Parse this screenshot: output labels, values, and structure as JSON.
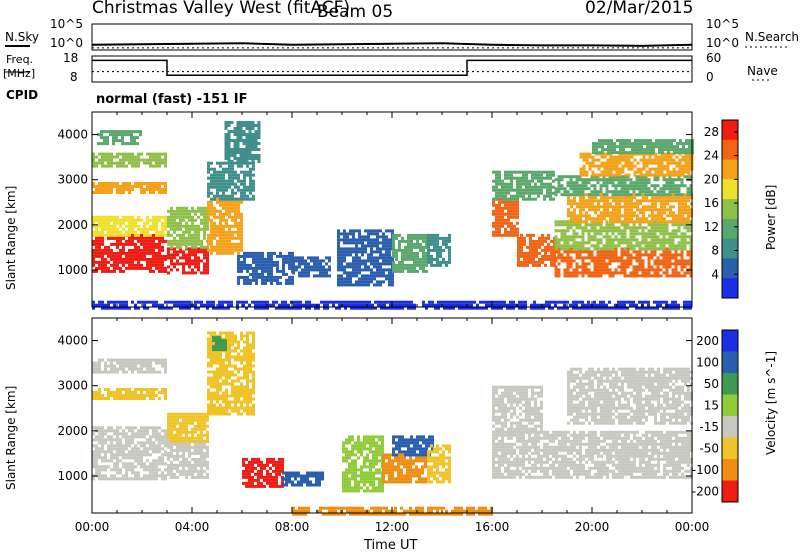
{
  "header": {
    "station": "Christmas Valley West (fitACF)",
    "beam": "Beam 05",
    "date": "02/Mar/2015"
  },
  "left_labels": {
    "nsky": "N.Sky",
    "freq": "Freq.",
    "freq_unit": "[MHz]",
    "cpid": "CPID"
  },
  "right_labels": {
    "nsearch": "N.Search",
    "nave": "Nave"
  },
  "cpid_text": "normal (fast) -151 IF",
  "noise_axis": {
    "left_ticks": [
      "10^5",
      "10^0"
    ],
    "right_ticks": [
      "10^5",
      "10^0"
    ]
  },
  "freq_axis": {
    "left_ticks": [
      "18",
      "8"
    ],
    "right_ticks": [
      "60",
      "0"
    ]
  },
  "chart_data": [
    {
      "type": "line",
      "name": "noise",
      "ylim_log10": [
        0,
        5
      ],
      "series": [
        {
          "name": "N.Sky",
          "x": [
            "00:00",
            "02:00",
            "04:00",
            "06:00",
            "08:00",
            "10:00",
            "12:00",
            "14:00",
            "16:00",
            "18:00",
            "20:00",
            "22:00",
            "24:00"
          ],
          "values_log10": [
            1.0,
            1.1,
            1.2,
            1.3,
            1.0,
            1.1,
            1.2,
            1.3,
            1.0,
            0.9,
            0.9,
            0.8,
            1.0
          ]
        },
        {
          "name": "N.Search",
          "x": [
            "00:00",
            "24:00"
          ],
          "values_log10": [
            0.4,
            0.4
          ]
        }
      ]
    },
    {
      "type": "line",
      "name": "frequency",
      "ylim": [
        8,
        18
      ],
      "series": [
        {
          "name": "Freq. [MHz]",
          "x": [
            "00:00",
            "03:00",
            "03:00",
            "15:00",
            "15:00",
            "24:00"
          ],
          "values": [
            16.3,
            16.3,
            10.6,
            10.6,
            16.3,
            16.3
          ]
        },
        {
          "name": "Nave",
          "x": [
            "00:00",
            "24:00"
          ],
          "values": [
            12.0,
            12.0
          ]
        }
      ]
    },
    {
      "type": "heatmap",
      "name": "power",
      "xlabel": "Time UT",
      "ylabel": "Slant Range [km]",
      "x_ticks": [
        "00:00",
        "04:00",
        "08:00",
        "12:00",
        "16:00",
        "20:00",
        "00:00"
      ],
      "y_ticks": [
        1000,
        2000,
        3000,
        4000
      ],
      "ylim": [
        180,
        4500
      ],
      "colorbar": {
        "label": "Power [dB]",
        "ticks": [
          4,
          8,
          12,
          16,
          20,
          24,
          28
        ],
        "range": [
          0,
          30
        ]
      },
      "bands": [
        {
          "t_start": 0.0,
          "t_end": 3.0,
          "r_low": 950,
          "r_high": 1800,
          "level": 27
        },
        {
          "t_start": 0.0,
          "t_end": 3.0,
          "r_low": 1800,
          "r_high": 2200,
          "level": 18
        },
        {
          "t_start": 0.0,
          "t_end": 3.0,
          "r_low": 2700,
          "r_high": 2950,
          "level": 21
        },
        {
          "t_start": 0.0,
          "t_end": 3.0,
          "r_low": 3300,
          "r_high": 3600,
          "level": 14
        },
        {
          "t_start": 0.2,
          "t_end": 2.0,
          "r_low": 3800,
          "r_high": 4100,
          "level": 10
        },
        {
          "t_start": 3.0,
          "t_end": 4.6,
          "r_low": 950,
          "r_high": 1500,
          "level": 27
        },
        {
          "t_start": 3.0,
          "t_end": 4.6,
          "r_low": 1500,
          "r_high": 2400,
          "level": 14
        },
        {
          "t_start": 4.6,
          "t_end": 6.0,
          "r_low": 1400,
          "r_high": 2600,
          "level": 20
        },
        {
          "t_start": 4.6,
          "t_end": 6.5,
          "r_low": 2600,
          "r_high": 3400,
          "level": 7
        },
        {
          "t_start": 5.3,
          "t_end": 6.7,
          "r_low": 3400,
          "r_high": 4300,
          "level": 9
        },
        {
          "t_start": 5.8,
          "t_end": 8.0,
          "r_low": 700,
          "r_high": 1400,
          "level": 5
        },
        {
          "t_start": 8.0,
          "t_end": 9.5,
          "r_low": 900,
          "r_high": 1300,
          "level": 5
        },
        {
          "t_start": 9.8,
          "t_end": 12.0,
          "r_low": 700,
          "r_high": 1900,
          "level": 6
        },
        {
          "t_start": 12.0,
          "t_end": 13.4,
          "r_low": 1000,
          "r_high": 1800,
          "level": 10
        },
        {
          "t_start": 13.4,
          "t_end": 14.3,
          "r_low": 1100,
          "r_high": 1800,
          "level": 8
        },
        {
          "t_start": 16.0,
          "t_end": 17.0,
          "r_low": 1800,
          "r_high": 2600,
          "level": 25
        },
        {
          "t_start": 17.0,
          "t_end": 18.5,
          "r_low": 1100,
          "r_high": 1800,
          "level": 26
        },
        {
          "t_start": 16.0,
          "t_end": 18.5,
          "r_low": 2600,
          "r_high": 3200,
          "level": 12
        },
        {
          "t_start": 18.5,
          "t_end": 24.0,
          "r_low": 900,
          "r_high": 1500,
          "level": 25
        },
        {
          "t_start": 18.5,
          "t_end": 24.0,
          "r_low": 1500,
          "r_high": 2100,
          "level": 14
        },
        {
          "t_start": 19.0,
          "t_end": 24.0,
          "r_low": 2100,
          "r_high": 2700,
          "level": 20
        },
        {
          "t_start": 18.5,
          "t_end": 24.0,
          "r_low": 2700,
          "r_high": 3100,
          "level": 12
        },
        {
          "t_start": 19.5,
          "t_end": 24.0,
          "r_low": 3100,
          "r_high": 3600,
          "level": 20
        },
        {
          "t_start": 20.0,
          "t_end": 24.0,
          "r_low": 3600,
          "r_high": 3900,
          "level": 11
        },
        {
          "t_start": 0.0,
          "t_end": 24.0,
          "r_low": 180,
          "r_high": 320,
          "level": 3
        }
      ]
    },
    {
      "type": "heatmap",
      "name": "velocity",
      "xlabel": "Time UT",
      "ylabel": "Slant Range [km]",
      "x_ticks": [
        "00:00",
        "04:00",
        "08:00",
        "12:00",
        "16:00",
        "20:00",
        "00:00"
      ],
      "y_ticks": [
        1000,
        2000,
        3000,
        4000
      ],
      "ylim": [
        180,
        4500
      ],
      "colorbar": {
        "label": "Velocity [m s^-1]",
        "ticks": [
          200,
          100,
          50,
          15,
          -15,
          -50,
          -100,
          -200
        ]
      },
      "bands": [
        {
          "t_start": 0.0,
          "t_end": 3.0,
          "r_low": 950,
          "r_high": 2100,
          "value": 0
        },
        {
          "t_start": 0.0,
          "t_end": 3.0,
          "r_low": 2700,
          "r_high": 2950,
          "value": -30
        },
        {
          "t_start": 0.0,
          "t_end": 3.0,
          "r_low": 3300,
          "r_high": 3600,
          "value": 0
        },
        {
          "t_start": 3.0,
          "t_end": 4.6,
          "r_low": 950,
          "r_high": 1800,
          "value": 0
        },
        {
          "t_start": 3.0,
          "t_end": 4.6,
          "r_low": 1800,
          "r_high": 2400,
          "value": -30
        },
        {
          "t_start": 4.6,
          "t_end": 6.5,
          "r_low": 2400,
          "r_high": 4200,
          "value": -40
        },
        {
          "t_start": 4.8,
          "t_end": 5.4,
          "r_low": 3800,
          "r_high": 4100,
          "value": 60
        },
        {
          "t_start": 6.0,
          "t_end": 7.6,
          "r_low": 750,
          "r_high": 1400,
          "value": -200
        },
        {
          "t_start": 7.6,
          "t_end": 9.2,
          "r_low": 800,
          "r_high": 1100,
          "value": 120
        },
        {
          "t_start": 10.0,
          "t_end": 11.6,
          "r_low": 700,
          "r_high": 1900,
          "value": 40
        },
        {
          "t_start": 11.6,
          "t_end": 13.4,
          "r_low": 900,
          "r_high": 1500,
          "value": -100
        },
        {
          "t_start": 12.0,
          "t_end": 13.6,
          "r_low": 1500,
          "r_high": 1900,
          "value": 150
        },
        {
          "t_start": 13.4,
          "t_end": 14.3,
          "r_low": 900,
          "r_high": 1700,
          "value": -40
        },
        {
          "t_start": 16.0,
          "t_end": 24.0,
          "r_low": 1000,
          "r_high": 2000,
          "value": 0
        },
        {
          "t_start": 16.0,
          "t_end": 18.0,
          "r_low": 2000,
          "r_high": 3000,
          "value": 0
        },
        {
          "t_start": 19.0,
          "t_end": 24.0,
          "r_low": 2200,
          "r_high": 3400,
          "value": 0
        },
        {
          "t_start": 8.0,
          "t_end": 16.0,
          "r_low": 180,
          "r_high": 320,
          "value": -60
        }
      ]
    }
  ],
  "colors": {
    "power_scale": [
      "#1a2ee8",
      "#2a5fb0",
      "#3f8f8a",
      "#5aa86b",
      "#8fc04a",
      "#f0e02a",
      "#f4a21a",
      "#f06414",
      "#ee1c12"
    ],
    "velocity_scale": [
      "#1a2ee8",
      "#2a5fb0",
      "#3c9a52",
      "#8fcc3a",
      "#c8c8c0",
      "#f0c428",
      "#f08e14",
      "#ee1c12"
    ]
  }
}
